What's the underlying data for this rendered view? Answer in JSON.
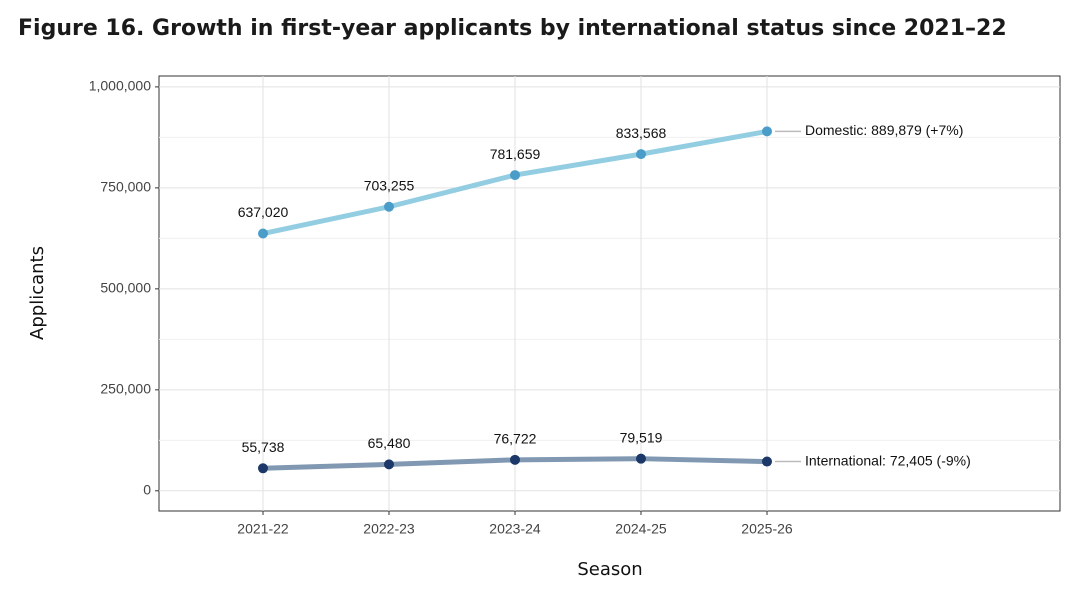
{
  "chart_data": {
    "type": "line",
    "title": "Figure 16. Growth in first-year applicants by international status since 2021–22",
    "x_label": "Season",
    "y_label": "Applicants",
    "categories": [
      "2021-22",
      "2022-23",
      "2023-24",
      "2024-25",
      "2025-26"
    ],
    "series": [
      {
        "name": "Domestic",
        "color": "#93cde2",
        "marker_color": "#4b9dc9",
        "values": [
          637020,
          703255,
          781659,
          833568,
          889879
        ],
        "value_labels": [
          "637,020",
          "703,255",
          "781,659",
          "833,568",
          null
        ],
        "end_label": "Domestic: 889,879 (+7%)"
      },
      {
        "name": "International",
        "color": "#8198b3",
        "marker_color": "#1b3868",
        "values": [
          55738,
          65480,
          76722,
          79519,
          72405
        ],
        "value_labels": [
          "55,738",
          "65,480",
          "76,722",
          "79,519",
          null
        ],
        "end_label": "International: 72,405 (-9%)"
      }
    ],
    "ylim": [
      -50000,
      1027000
    ],
    "yticks": [
      {
        "value": 0,
        "label": "0"
      },
      {
        "value": 250000,
        "label": "250,000"
      },
      {
        "value": 500000,
        "label": "500,000"
      },
      {
        "value": 750000,
        "label": "750,000"
      },
      {
        "value": 1000000,
        "label": "1,000,000"
      }
    ],
    "y_minor_ticks": [
      125000,
      375000,
      625000,
      875000
    ],
    "grid": true
  }
}
